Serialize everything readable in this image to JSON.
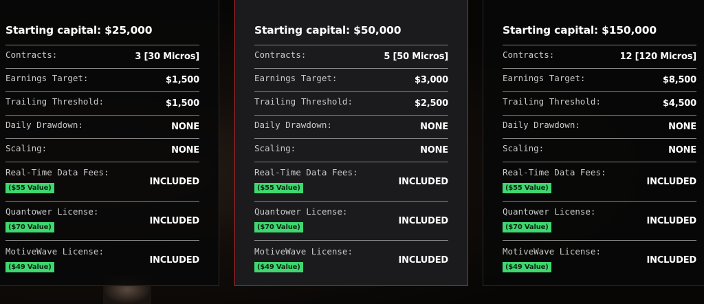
{
  "colors": {
    "accent_border": "#b0282d",
    "badge": "#3fd76f"
  },
  "plans": [
    {
      "title": "Starting capital: $25,000",
      "rows": [
        {
          "label": "Contracts:",
          "value": "3 [30 Micros]"
        },
        {
          "label": "Earnings Target:",
          "value": "$1,500"
        },
        {
          "label": "Trailing Threshold:",
          "value": "$1,500"
        },
        {
          "label": "Daily Drawdown:",
          "value": "NONE"
        },
        {
          "label": "Scaling:",
          "value": "NONE"
        },
        {
          "label": "Real-Time Data Fees:",
          "value": "INCLUDED",
          "badge": "($55 Value)"
        },
        {
          "label": "Quantower License:",
          "value": "INCLUDED",
          "badge": "($70 Value)"
        },
        {
          "label": "MotiveWave License:",
          "value": "INCLUDED",
          "badge": "($49 Value)"
        }
      ]
    },
    {
      "title": "Starting capital: $50,000",
      "rows": [
        {
          "label": "Contracts:",
          "value": "5 [50 Micros]"
        },
        {
          "label": "Earnings Target:",
          "value": "$3,000"
        },
        {
          "label": "Trailing Threshold:",
          "value": "$2,500"
        },
        {
          "label": "Daily Drawdown:",
          "value": "NONE"
        },
        {
          "label": "Scaling:",
          "value": "NONE"
        },
        {
          "label": "Real-Time Data Fees:",
          "value": "INCLUDED",
          "badge": "($55 Value)"
        },
        {
          "label": "Quantower License:",
          "value": "INCLUDED",
          "badge": "($70 Value)"
        },
        {
          "label": "MotiveWave License:",
          "value": "INCLUDED",
          "badge": "($49 Value)"
        }
      ]
    },
    {
      "title": "Starting capital: $150,000",
      "rows": [
        {
          "label": "Contracts:",
          "value": "12 [120 Micros]"
        },
        {
          "label": "Earnings Target:",
          "value": "$8,500"
        },
        {
          "label": "Trailing Threshold:",
          "value": "$4,500"
        },
        {
          "label": "Daily Drawdown:",
          "value": "NONE"
        },
        {
          "label": "Scaling:",
          "value": "NONE"
        },
        {
          "label": "Real-Time Data Fees:",
          "value": "INCLUDED",
          "badge": "($55 Value)"
        },
        {
          "label": "Quantower License:",
          "value": "INCLUDED",
          "badge": "($70 Value)"
        },
        {
          "label": "MotiveWave License:",
          "value": "INCLUDED",
          "badge": "($49 Value)"
        }
      ]
    }
  ]
}
